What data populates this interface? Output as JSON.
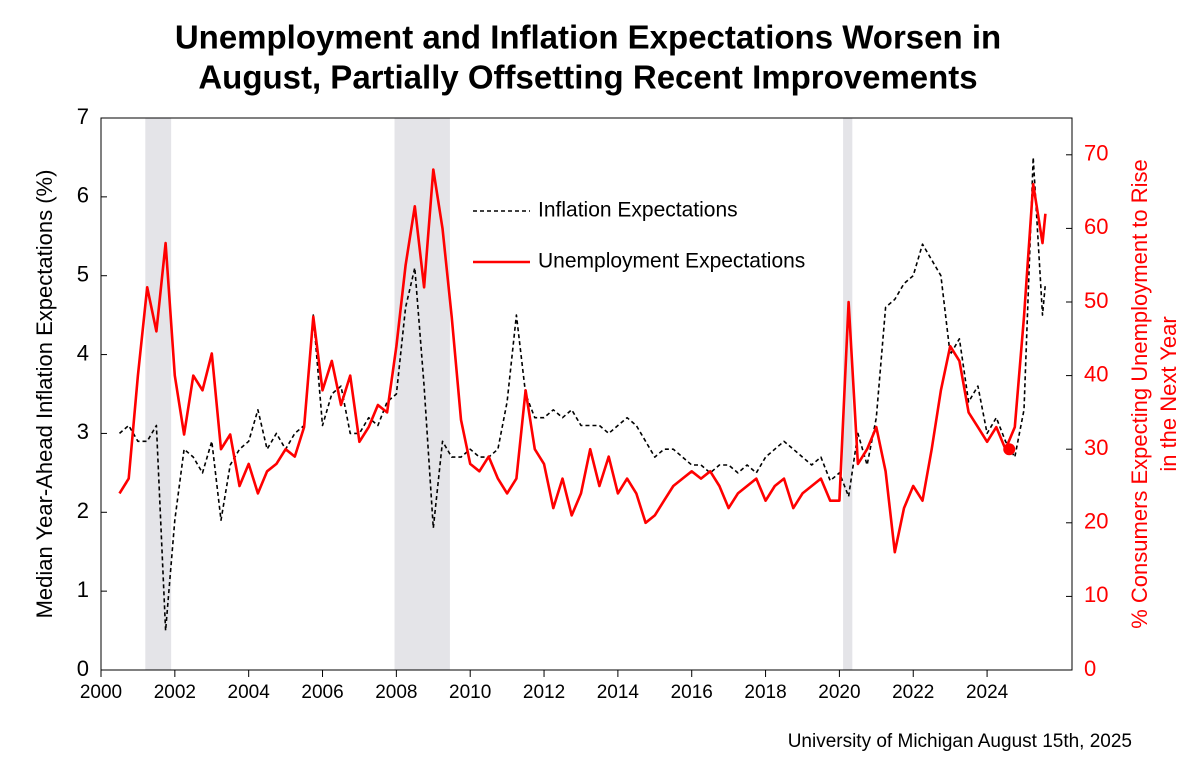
{
  "chart_data": {
    "type": "line",
    "title": [
      "Unemployment and Inflation Expectations Worsen in",
      "August, Partially Offsetting Recent Improvements"
    ],
    "ylabel": "Median Year-Ahead Inflation Expectations (%)",
    "y2label": [
      "% Consumers Expecting Unemployment to Rise",
      "in the Next Year"
    ],
    "source": "University of Michigan August 15th, 2025",
    "xlim": [
      2000,
      2026.3
    ],
    "xticks": [
      2000,
      2002,
      2004,
      2006,
      2008,
      2010,
      2012,
      2014,
      2016,
      2018,
      2020,
      2022,
      2024
    ],
    "ylim": [
      0,
      7
    ],
    "yticks": [
      0,
      1,
      2,
      3,
      4,
      5,
      6,
      7
    ],
    "y2lim": [
      0,
      75
    ],
    "y2ticks": [
      0,
      10,
      20,
      30,
      40,
      50,
      60,
      70
    ],
    "legend": "upper center",
    "shaded_regions": [
      [
        2001.2,
        2001.9
      ],
      [
        2007.95,
        2009.45
      ],
      [
        2020.1,
        2020.35
      ]
    ],
    "shade_color": "#e4e4e8",
    "x": [
      2000.5,
      2000.75,
      2001,
      2001.25,
      2001.5,
      2001.75,
      2002,
      2002.25,
      2002.5,
      2002.75,
      2003,
      2003.25,
      2003.5,
      2003.75,
      2004,
      2004.25,
      2004.5,
      2004.75,
      2005,
      2005.25,
      2005.5,
      2005.75,
      2006,
      2006.25,
      2006.5,
      2006.75,
      2007,
      2007.25,
      2007.5,
      2007.75,
      2008,
      2008.25,
      2008.5,
      2008.75,
      2009,
      2009.25,
      2009.5,
      2009.75,
      2010,
      2010.25,
      2010.5,
      2010.75,
      2011,
      2011.25,
      2011.5,
      2011.75,
      2012,
      2012.25,
      2012.5,
      2012.75,
      2013,
      2013.25,
      2013.5,
      2013.75,
      2014,
      2014.25,
      2014.5,
      2014.75,
      2015,
      2015.25,
      2015.5,
      2015.75,
      2016,
      2016.25,
      2016.5,
      2016.75,
      2017,
      2017.25,
      2017.5,
      2017.75,
      2018,
      2018.25,
      2018.5,
      2018.75,
      2019,
      2019.25,
      2019.5,
      2019.75,
      2020,
      2020.25,
      2020.5,
      2020.75,
      2021,
      2021.25,
      2021.5,
      2021.75,
      2022,
      2022.25,
      2022.5,
      2022.75,
      2023,
      2023.25,
      2023.5,
      2023.75,
      2024,
      2024.25,
      2024.5,
      2024.75,
      2025,
      2025.25,
      2025.5,
      2025.58
    ],
    "series": [
      {
        "name": "Inflation Expectations",
        "color": "#000000",
        "dash": true,
        "values": [
          3.0,
          3.1,
          2.9,
          2.9,
          3.1,
          0.5,
          1.9,
          2.8,
          2.7,
          2.5,
          2.9,
          1.9,
          2.6,
          2.8,
          2.9,
          3.3,
          2.8,
          3.0,
          2.8,
          3.0,
          3.1,
          4.5,
          3.1,
          3.5,
          3.6,
          3.0,
          3.0,
          3.2,
          3.1,
          3.4,
          3.5,
          4.6,
          5.1,
          3.6,
          1.8,
          2.9,
          2.7,
          2.7,
          2.8,
          2.7,
          2.7,
          2.8,
          3.4,
          4.5,
          3.5,
          3.2,
          3.2,
          3.3,
          3.2,
          3.3,
          3.1,
          3.1,
          3.1,
          3.0,
          3.1,
          3.2,
          3.1,
          2.9,
          2.7,
          2.8,
          2.8,
          2.7,
          2.6,
          2.6,
          2.5,
          2.6,
          2.6,
          2.5,
          2.6,
          2.5,
          2.7,
          2.8,
          2.9,
          2.8,
          2.7,
          2.6,
          2.7,
          2.4,
          2.5,
          2.2,
          3.0,
          2.6,
          3.2,
          4.6,
          4.7,
          4.9,
          5.0,
          5.4,
          5.2,
          5.0,
          4.0,
          4.2,
          3.4,
          3.6,
          3.0,
          3.2,
          2.9,
          2.7,
          3.3,
          6.5,
          4.5,
          4.9
        ]
      },
      {
        "name": "Unemployment Expectations",
        "color": "#ff0000",
        "axis": "y2",
        "values": [
          24,
          26,
          40,
          52,
          46,
          58,
          40,
          32,
          40,
          38,
          43,
          30,
          32,
          25,
          28,
          24,
          27,
          28,
          30,
          29,
          33,
          48,
          38,
          42,
          36,
          40,
          31,
          33,
          36,
          35,
          44,
          55,
          63,
          52,
          68,
          60,
          48,
          34,
          28,
          27,
          29,
          26,
          24,
          26,
          38,
          30,
          28,
          22,
          26,
          21,
          24,
          30,
          25,
          29,
          24,
          26,
          24,
          20,
          21,
          23,
          25,
          26,
          27,
          26,
          27,
          25,
          22,
          24,
          25,
          26,
          23,
          25,
          26,
          22,
          24,
          25,
          26,
          23,
          23,
          50,
          28,
          30,
          33,
          27,
          16,
          22,
          25,
          23,
          30,
          38,
          44,
          42,
          35,
          33,
          31,
          33,
          30,
          33,
          48,
          66,
          58,
          62
        ]
      }
    ],
    "marker": {
      "x": 2024.6,
      "value": 30,
      "axis": "y2",
      "color": "#ff0000"
    }
  }
}
